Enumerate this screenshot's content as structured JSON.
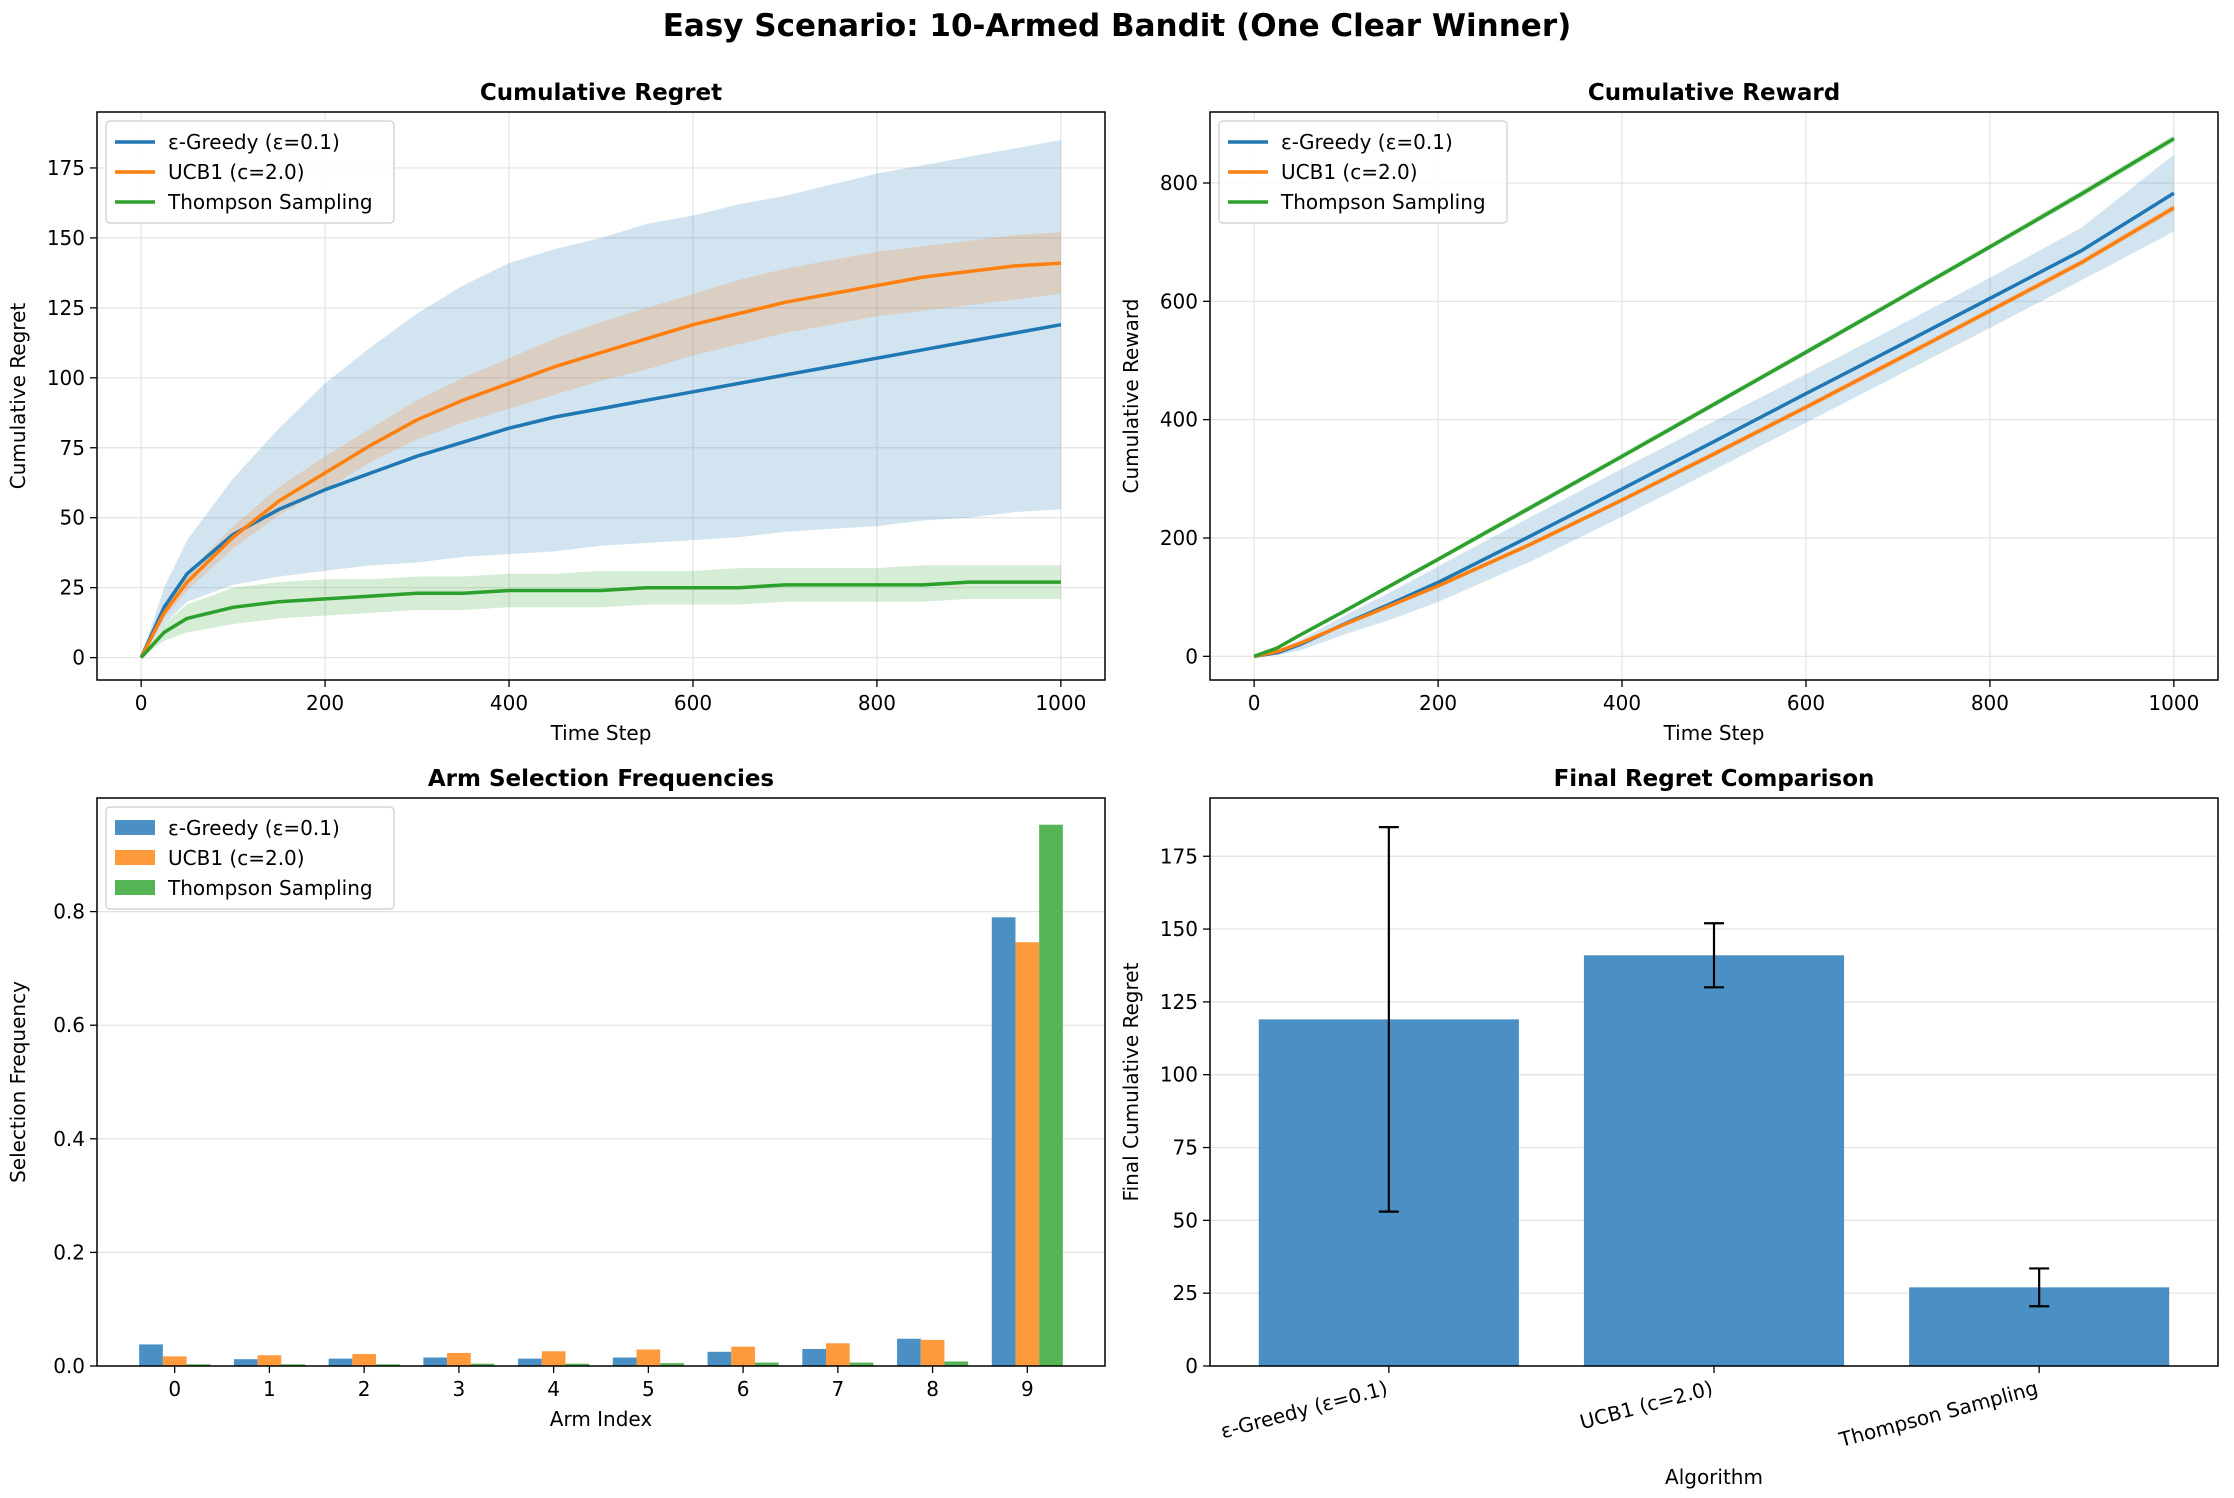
{
  "figure": {
    "title": "Easy Scenario: 10-Armed Bandit (One Clear Winner)"
  },
  "colors": {
    "blue": "#1f77b4",
    "orange": "#ff7f0e",
    "green": "#2ca02c",
    "bar_blue": "#4a90c4",
    "bar_orange": "#ff9a3c",
    "bar_green": "#55b455"
  },
  "chart_data": [
    {
      "id": "regret",
      "type": "line",
      "title": "Cumulative Regret",
      "xlabel": "Time Step",
      "ylabel": "Cumulative Regret",
      "xlim": [
        -48,
        1048
      ],
      "ylim": [
        -8,
        195
      ],
      "xticks": [
        0,
        200,
        400,
        600,
        800,
        1000
      ],
      "yticks": [
        0,
        25,
        50,
        75,
        100,
        125,
        150,
        175
      ],
      "grid": true,
      "legend": "top-left",
      "x": [
        0,
        25,
        50,
        100,
        150,
        200,
        250,
        300,
        350,
        400,
        450,
        500,
        550,
        600,
        650,
        700,
        750,
        800,
        850,
        900,
        950,
        1000
      ],
      "series": [
        {
          "name": "ε-Greedy (ε=0.1)",
          "color": "#1f77b4",
          "mean": [
            0,
            18,
            30,
            44,
            53,
            60,
            66,
            72,
            77,
            82,
            86,
            89,
            92,
            95,
            98,
            101,
            104,
            107,
            110,
            113,
            116,
            119
          ],
          "lower": [
            0,
            12,
            20,
            26,
            29,
            31,
            33,
            34,
            36,
            37,
            38,
            40,
            41,
            42,
            43,
            45,
            46,
            47,
            49,
            50,
            52,
            53
          ],
          "upper": [
            0,
            25,
            42,
            64,
            82,
            98,
            111,
            123,
            133,
            141,
            146,
            150,
            155,
            158,
            162,
            165,
            169,
            173,
            176,
            179,
            182,
            185
          ]
        },
        {
          "name": "UCB1 (c=2.0)",
          "color": "#ff7f0e",
          "mean": [
            0,
            16,
            27,
            43,
            56,
            66,
            76,
            85,
            92,
            98,
            104,
            109,
            114,
            119,
            123,
            127,
            130,
            133,
            136,
            138,
            140,
            141
          ],
          "lower": [
            0,
            14,
            24,
            39,
            51,
            60,
            70,
            78,
            84,
            89,
            94,
            99,
            103,
            108,
            112,
            116,
            119,
            122,
            124,
            126,
            128,
            130
          ],
          "upper": [
            0,
            18,
            30,
            47,
            61,
            72,
            82,
            92,
            100,
            107,
            114,
            120,
            125,
            130,
            135,
            139,
            142,
            145,
            147,
            149,
            151,
            152
          ]
        },
        {
          "name": "Thompson Sampling",
          "color": "#2ca02c",
          "mean": [
            0,
            9,
            14,
            18,
            20,
            21,
            22,
            23,
            23,
            24,
            24,
            24,
            25,
            25,
            25,
            26,
            26,
            26,
            26,
            27,
            27,
            27
          ],
          "lower": [
            0,
            6,
            9,
            12,
            14,
            15,
            16,
            17,
            17,
            18,
            18,
            18,
            19,
            19,
            19,
            20,
            20,
            20,
            20,
            21,
            21,
            21
          ],
          "upper": [
            0,
            12,
            19,
            25,
            27,
            28,
            28,
            29,
            29,
            30,
            30,
            31,
            31,
            31,
            32,
            32,
            32,
            32,
            33,
            33,
            33,
            33
          ]
        }
      ]
    },
    {
      "id": "reward",
      "type": "line",
      "title": "Cumulative Reward",
      "xlabel": "Time Step",
      "ylabel": "Cumulative Reward",
      "xlim": [
        -48,
        1048
      ],
      "ylim": [
        -40,
        920
      ],
      "xticks": [
        0,
        200,
        400,
        600,
        800,
        1000
      ],
      "yticks": [
        0,
        200,
        400,
        600,
        800
      ],
      "grid": true,
      "legend": "top-left",
      "x": [
        0,
        25,
        50,
        100,
        150,
        200,
        300,
        400,
        500,
        600,
        700,
        800,
        900,
        1000
      ],
      "series": [
        {
          "name": "ε-Greedy (ε=0.1)",
          "color": "#1f77b4",
          "mean": [
            0,
            6,
            20,
            56,
            90,
            125,
            203,
            283,
            363,
            444,
            524,
            605,
            686,
            783
          ],
          "lower": [
            0,
            2,
            10,
            38,
            63,
            92,
            160,
            236,
            315,
            395,
            475,
            555,
            636,
            718
          ],
          "upper": [
            0,
            10,
            28,
            70,
            110,
            152,
            235,
            317,
            397,
            477,
            558,
            640,
            725,
            848
          ]
        },
        {
          "name": "UCB1 (c=2.0)",
          "color": "#ff7f0e",
          "mean": [
            0,
            8,
            22,
            55,
            87,
            119,
            189,
            264,
            342,
            421,
            502,
            584,
            666,
            758
          ],
          "lower": [
            0,
            7,
            20,
            52,
            84,
            115,
            185,
            260,
            337,
            416,
            497,
            579,
            661,
            752
          ],
          "upper": [
            0,
            9,
            24,
            58,
            90,
            123,
            193,
            268,
            347,
            426,
            507,
            589,
            671,
            764
          ]
        },
        {
          "name": "Thompson Sampling",
          "color": "#2ca02c",
          "mean": [
            0,
            14,
            36,
            78,
            121,
            164,
            251,
            338,
            426,
            514,
            603,
            692,
            782,
            875
          ],
          "lower": [
            0,
            12,
            33,
            75,
            117,
            160,
            246,
            333,
            421,
            509,
            598,
            687,
            776,
            869
          ],
          "upper": [
            0,
            16,
            39,
            81,
            125,
            168,
            256,
            343,
            431,
            519,
            608,
            697,
            788,
            881
          ]
        }
      ]
    },
    {
      "id": "freq",
      "type": "bar",
      "title": "Arm Selection Frequencies",
      "xlabel": "Arm Index",
      "ylabel": "Selection Frequency",
      "ylim": [
        0,
        1.0
      ],
      "yticks": [
        0.0,
        0.2,
        0.4,
        0.6,
        0.8
      ],
      "ytick_labels": [
        "0.0",
        "0.2",
        "0.4",
        "0.6",
        "0.8"
      ],
      "grid": true,
      "legend": "top-left",
      "categories": [
        "0",
        "1",
        "2",
        "3",
        "4",
        "5",
        "6",
        "7",
        "8",
        "9"
      ],
      "series": [
        {
          "name": "ε-Greedy (ε=0.1)",
          "color": "#4a90c4",
          "values": [
            0.038,
            0.012,
            0.013,
            0.015,
            0.013,
            0.015,
            0.025,
            0.03,
            0.048,
            0.79
          ]
        },
        {
          "name": "UCB1 (c=2.0)",
          "color": "#ff9a3c",
          "values": [
            0.017,
            0.019,
            0.021,
            0.023,
            0.026,
            0.029,
            0.034,
            0.04,
            0.046,
            0.746
          ]
        },
        {
          "name": "Thompson Sampling",
          "color": "#55b455",
          "values": [
            0.003,
            0.003,
            0.003,
            0.004,
            0.004,
            0.005,
            0.006,
            0.006,
            0.008,
            0.953
          ]
        }
      ]
    },
    {
      "id": "final",
      "type": "bar",
      "title": "Final Regret Comparison",
      "xlabel": "Algorithm",
      "ylabel": "Final Cumulative Regret",
      "ylim": [
        0,
        195
      ],
      "yticks": [
        0,
        25,
        50,
        75,
        100,
        125,
        150,
        175
      ],
      "grid": true,
      "categories": [
        "ε-Greedy (ε=0.1)",
        "UCB1 (c=2.0)",
        "Thompson Sampling"
      ],
      "values": [
        119,
        141,
        27
      ],
      "errors": [
        66,
        11,
        6.5
      ],
      "color": "#4a90c4"
    }
  ]
}
